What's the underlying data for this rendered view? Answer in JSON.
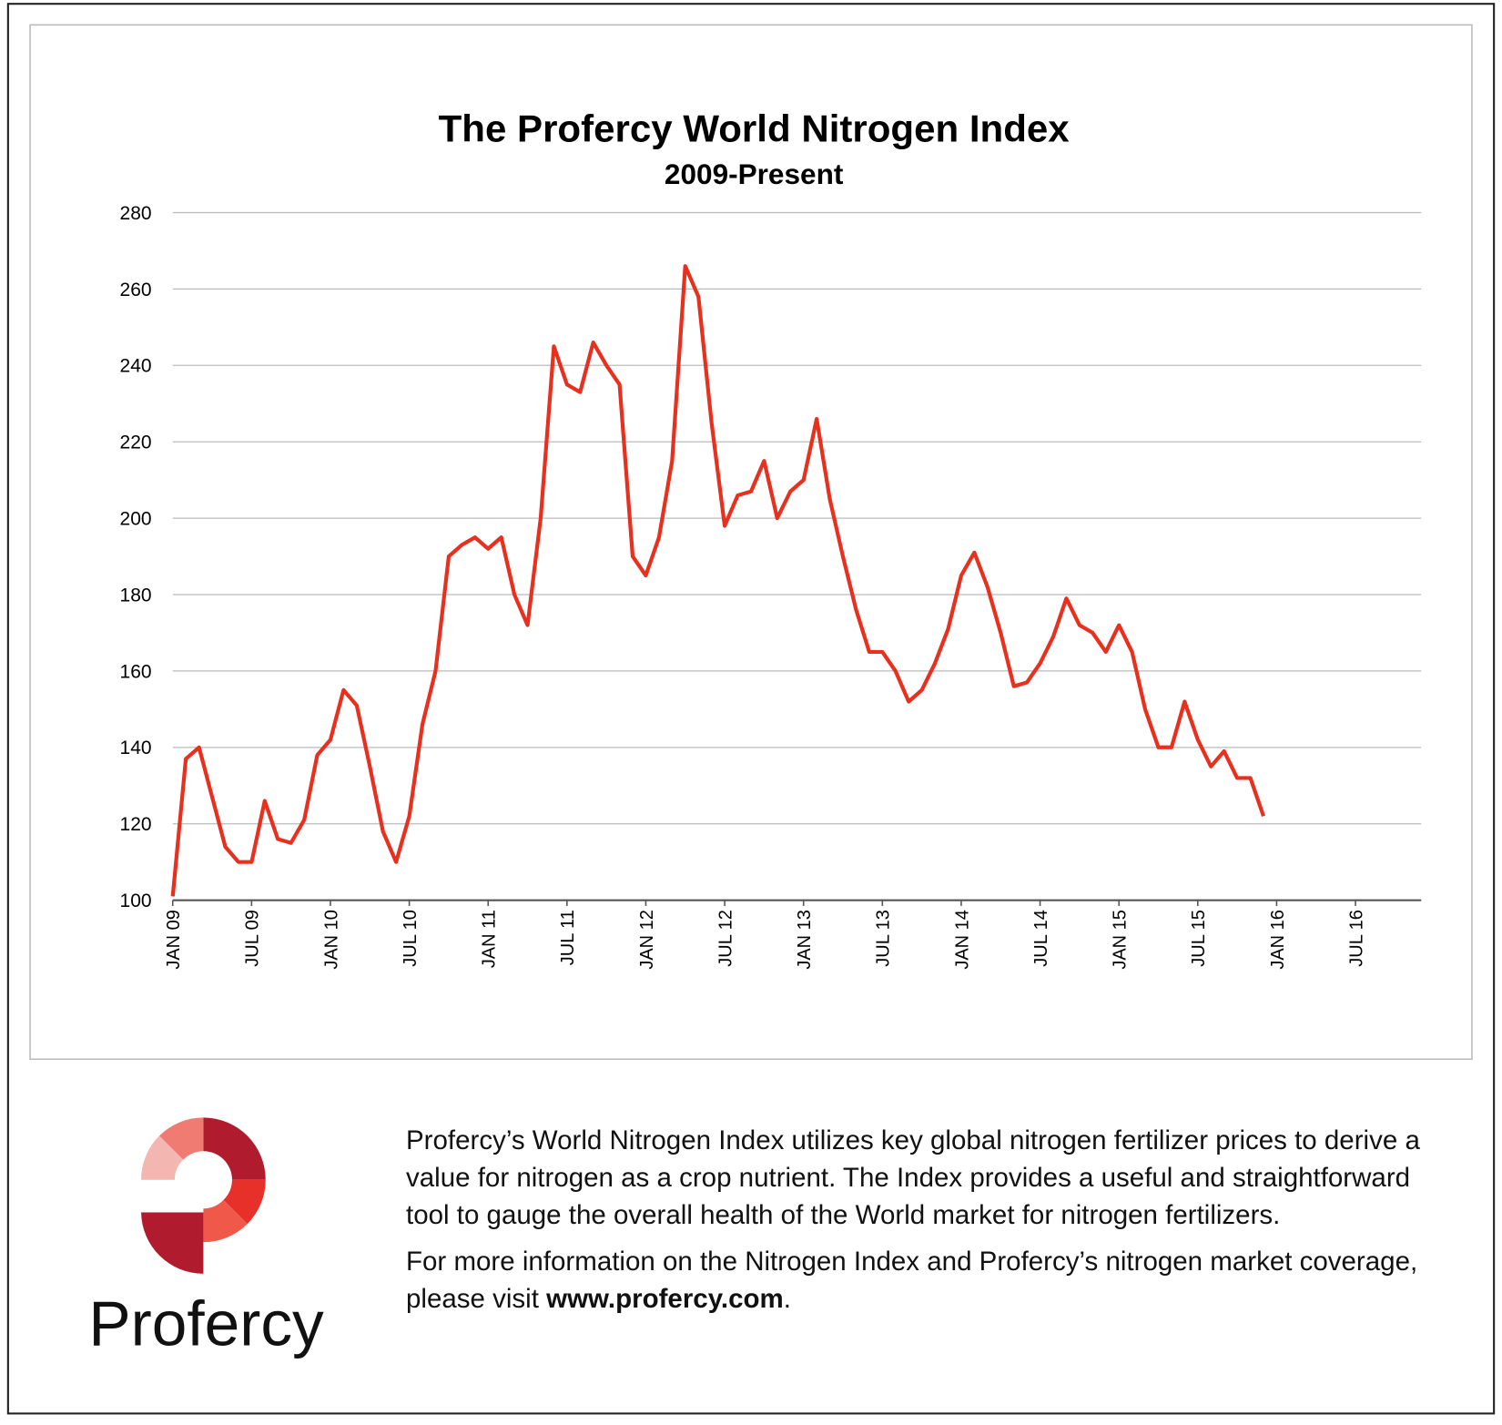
{
  "chart_data": {
    "type": "line",
    "title": "The Profercy World Nitrogen Index",
    "subtitle": "2009-Present",
    "color": "#e8301f",
    "grid": true,
    "x": [
      "2009-01",
      "2009-02",
      "2009-03",
      "2009-04",
      "2009-05",
      "2009-06",
      "2009-07",
      "2009-08",
      "2009-09",
      "2009-10",
      "2009-11",
      "2009-12",
      "2010-01",
      "2010-02",
      "2010-03",
      "2010-04",
      "2010-05",
      "2010-06",
      "2010-07",
      "2010-08",
      "2010-09",
      "2010-10",
      "2010-11",
      "2010-12",
      "2011-01",
      "2011-02",
      "2011-03",
      "2011-04",
      "2011-05",
      "2011-06",
      "2011-07",
      "2011-08",
      "2011-09",
      "2011-10",
      "2011-11",
      "2011-12",
      "2012-01",
      "2012-02",
      "2012-03",
      "2012-04",
      "2012-05",
      "2012-06",
      "2012-07",
      "2012-08",
      "2012-09",
      "2012-10",
      "2012-11",
      "2012-12",
      "2013-01",
      "2013-02",
      "2013-03",
      "2013-04",
      "2013-05",
      "2013-06",
      "2013-07",
      "2013-08",
      "2013-09",
      "2013-10",
      "2013-11",
      "2013-12",
      "2014-01",
      "2014-02",
      "2014-03",
      "2014-04",
      "2014-05",
      "2014-06",
      "2014-07",
      "2014-08",
      "2014-09",
      "2014-10",
      "2014-11",
      "2014-12",
      "2015-01",
      "2015-02",
      "2015-03",
      "2015-04",
      "2015-05",
      "2015-06",
      "2015-07",
      "2015-08",
      "2015-09",
      "2015-10",
      "2015-11",
      "2015-12"
    ],
    "values": [
      101,
      137,
      140,
      127,
      114,
      110,
      110,
      126,
      116,
      115,
      121,
      138,
      142,
      155,
      151,
      135,
      118,
      110,
      122,
      146,
      160,
      190,
      193,
      195,
      192,
      195,
      180,
      172,
      200,
      245,
      235,
      233,
      246,
      240,
      235,
      190,
      185,
      195,
      215,
      266,
      258,
      225,
      198,
      206,
      207,
      215,
      200,
      207,
      210,
      226,
      205,
      190,
      176,
      165,
      165,
      160,
      152,
      155,
      162,
      171,
      185,
      191,
      182,
      170,
      156,
      157,
      162,
      169,
      179,
      172,
      170,
      165,
      172,
      165,
      150,
      140,
      140,
      152,
      142,
      135,
      139,
      132,
      132,
      122
    ],
    "xlim": [
      "2009-01",
      "2016-12"
    ],
    "xticks": [
      {
        "value": "2009-01",
        "label": "JAN 09"
      },
      {
        "value": "2009-07",
        "label": "JUL 09"
      },
      {
        "value": "2010-01",
        "label": "JAN 10"
      },
      {
        "value": "2010-07",
        "label": "JUL 10"
      },
      {
        "value": "2011-01",
        "label": "JAN 11"
      },
      {
        "value": "2011-07",
        "label": "JUL 11"
      },
      {
        "value": "2012-01",
        "label": "JAN 12"
      },
      {
        "value": "2012-07",
        "label": "JUL 12"
      },
      {
        "value": "2013-01",
        "label": "JAN 13"
      },
      {
        "value": "2013-07",
        "label": "JUL 13"
      },
      {
        "value": "2014-01",
        "label": "JAN 14"
      },
      {
        "value": "2014-07",
        "label": "JUL 14"
      },
      {
        "value": "2015-01",
        "label": "JAN 15"
      },
      {
        "value": "2015-07",
        "label": "JUL 15"
      },
      {
        "value": "2016-01",
        "label": "JAN 16"
      },
      {
        "value": "2016-07",
        "label": "JUL 16"
      }
    ],
    "ylim": [
      100,
      280
    ],
    "yticks": [
      100,
      120,
      140,
      160,
      180,
      200,
      220,
      240,
      260,
      280
    ]
  },
  "footer": {
    "logo": "Profercy",
    "description": "Profercy’s World Nitrogen Index utilizes key global nitrogen fertilizer prices to derive a value for nitrogen as a crop nutrient. The Index provides a useful and straightforward tool to gauge the overall health of the World market for nitrogen fertilizers.",
    "more_info": "For more information on the Nitrogen Index and Profercy’s nitrogen market coverage, please visit ",
    "url": "www.profercy.com",
    "end": "."
  }
}
